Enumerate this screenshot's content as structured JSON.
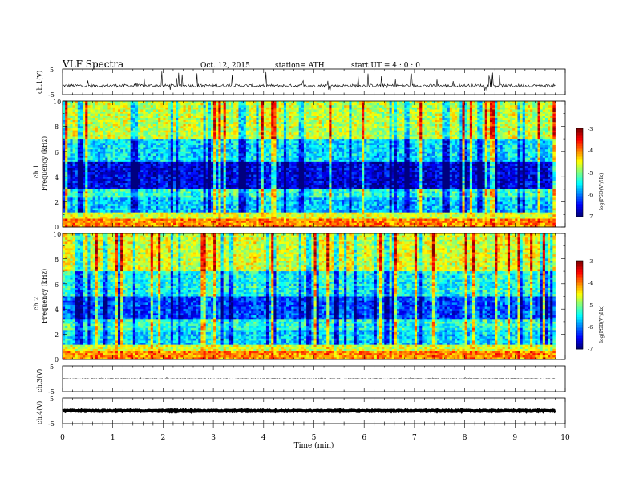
{
  "header": {
    "title": "VLF  Spectra",
    "date": "Oct. 12, 2015",
    "station": "station= ATH",
    "start": "start  UT  =   4 : 0  : 0"
  },
  "chart_data": [
    {
      "type": "line",
      "panel": "ch1-waveform",
      "ylabel": "ch.1(V)",
      "ylim": [
        -5,
        5
      ],
      "yticks": [
        "5",
        "-5"
      ],
      "xlim": [
        0,
        10
      ],
      "data_xmax": 9.8,
      "baseline": -1.5,
      "spread": 0.6,
      "spike_max": 5
    },
    {
      "type": "heatmap",
      "panel": "ch1-spectrogram",
      "ylabel": "Frequency  (kHz)",
      "channel_label": "ch.1",
      "ylim": [
        0,
        10
      ],
      "yticks": [
        "0",
        "2",
        "4",
        "6",
        "8",
        "10"
      ],
      "xlim": [
        0,
        10
      ],
      "data_xmax": 9.8,
      "colorbar": {
        "label": "log(PSD(V²/Hz)",
        "range": [
          -7,
          -3
        ],
        "ticks": [
          "-3",
          "-4",
          "-5",
          "-6",
          "-7"
        ]
      },
      "bands_khz": [
        [
          0,
          0.6,
          -4.0
        ],
        [
          0.6,
          1.2,
          -4.6
        ],
        [
          1.2,
          2.4,
          -5.7
        ],
        [
          2.4,
          3.0,
          -5.3
        ],
        [
          3.0,
          5.2,
          -6.6
        ],
        [
          5.2,
          7.0,
          -5.6
        ],
        [
          7.0,
          10.0,
          -4.7
        ]
      ]
    },
    {
      "type": "heatmap",
      "panel": "ch2-spectrogram",
      "ylabel": "Frequency  (kHz)",
      "channel_label": "ch.2",
      "ylim": [
        0,
        10
      ],
      "yticks": [
        "0",
        "2",
        "4",
        "6",
        "8",
        "10"
      ],
      "xlim": [
        0,
        10
      ],
      "data_xmax": 9.8,
      "colorbar": {
        "label": "log(PSD(V²/Hz)",
        "range": [
          -7,
          -3
        ],
        "ticks": [
          "-3",
          "-4",
          "-5",
          "-6",
          "-7"
        ]
      },
      "bands_khz": [
        [
          0,
          0.6,
          -4.0
        ],
        [
          0.6,
          1.2,
          -4.6
        ],
        [
          1.2,
          2.4,
          -5.6
        ],
        [
          2.4,
          3.2,
          -5.3
        ],
        [
          3.2,
          5.0,
          -6.2
        ],
        [
          5.0,
          7.0,
          -5.4
        ],
        [
          7.0,
          10.0,
          -4.6
        ]
      ]
    },
    {
      "type": "line",
      "panel": "ch3-waveform",
      "ylabel": "ch.3(V)",
      "ylim": [
        -5,
        5
      ],
      "yticks": [
        "5",
        "-5"
      ],
      "xlim": [
        0,
        10
      ],
      "data_xmax": 9.8,
      "baseline": 0,
      "spread": 0.15,
      "spike_max": 0.5
    },
    {
      "type": "line",
      "panel": "ch4-waveform",
      "ylabel": "ch.4(V)",
      "ylim": [
        -5,
        5
      ],
      "yticks": [
        "5",
        "-5"
      ],
      "xlim": [
        0,
        10
      ],
      "data_xmax": 9.8,
      "baseline": 0,
      "spread": 0.2,
      "spike_max": 0
    }
  ],
  "xaxis": {
    "label": "Time  (min)",
    "ticks": [
      "0",
      "1",
      "2",
      "3",
      "4",
      "5",
      "6",
      "7",
      "8",
      "9",
      "10"
    ]
  }
}
